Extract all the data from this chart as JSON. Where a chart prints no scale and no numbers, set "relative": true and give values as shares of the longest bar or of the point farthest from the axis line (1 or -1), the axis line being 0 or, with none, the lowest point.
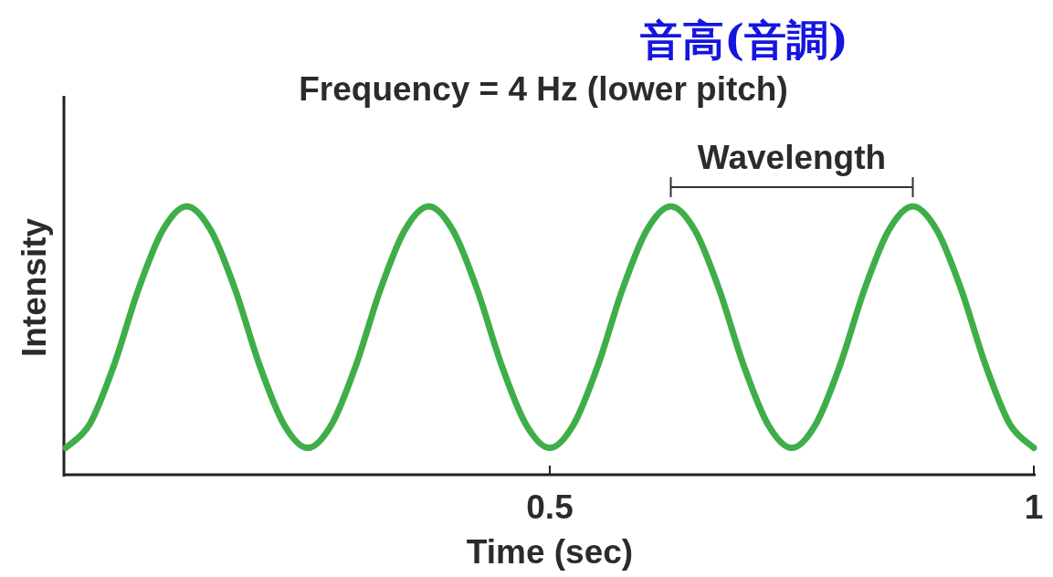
{
  "chart_data": {
    "type": "line",
    "title": "音高(音調)",
    "subtitle": "Frequency = 4 Hz (lower pitch)",
    "xlabel": "Time (sec)",
    "ylabel": "Intensity",
    "relative": true,
    "xlim": [
      0,
      1
    ],
    "xticks": [
      0.5,
      1
    ],
    "x": [
      0,
      0.025,
      0.05,
      0.075,
      0.1,
      0.125,
      0.15,
      0.175,
      0.2,
      0.225,
      0.25,
      0.275,
      0.3,
      0.325,
      0.35,
      0.375,
      0.4,
      0.425,
      0.45,
      0.475,
      0.5,
      0.525,
      0.55,
      0.575,
      0.6,
      0.625,
      0.65,
      0.675,
      0.7,
      0.725,
      0.75,
      0.775,
      0.8,
      0.825,
      0.85,
      0.875,
      0.9,
      0.925,
      0.95,
      0.975,
      1
    ],
    "series": [
      {
        "color": "#3fae49",
        "values": [
          0.1,
          0.19,
          0.41,
          0.69,
          0.91,
          1.0,
          0.91,
          0.69,
          0.41,
          0.19,
          0.1,
          0.19,
          0.41,
          0.69,
          0.91,
          1.0,
          0.91,
          0.69,
          0.41,
          0.19,
          0.1,
          0.19,
          0.41,
          0.69,
          0.91,
          1.0,
          0.91,
          0.69,
          0.41,
          0.19,
          0.1,
          0.19,
          0.41,
          0.69,
          0.91,
          1.0,
          0.91,
          0.69,
          0.41,
          0.19,
          0.1
        ]
      }
    ],
    "annotations": [
      "Wavelength"
    ]
  }
}
